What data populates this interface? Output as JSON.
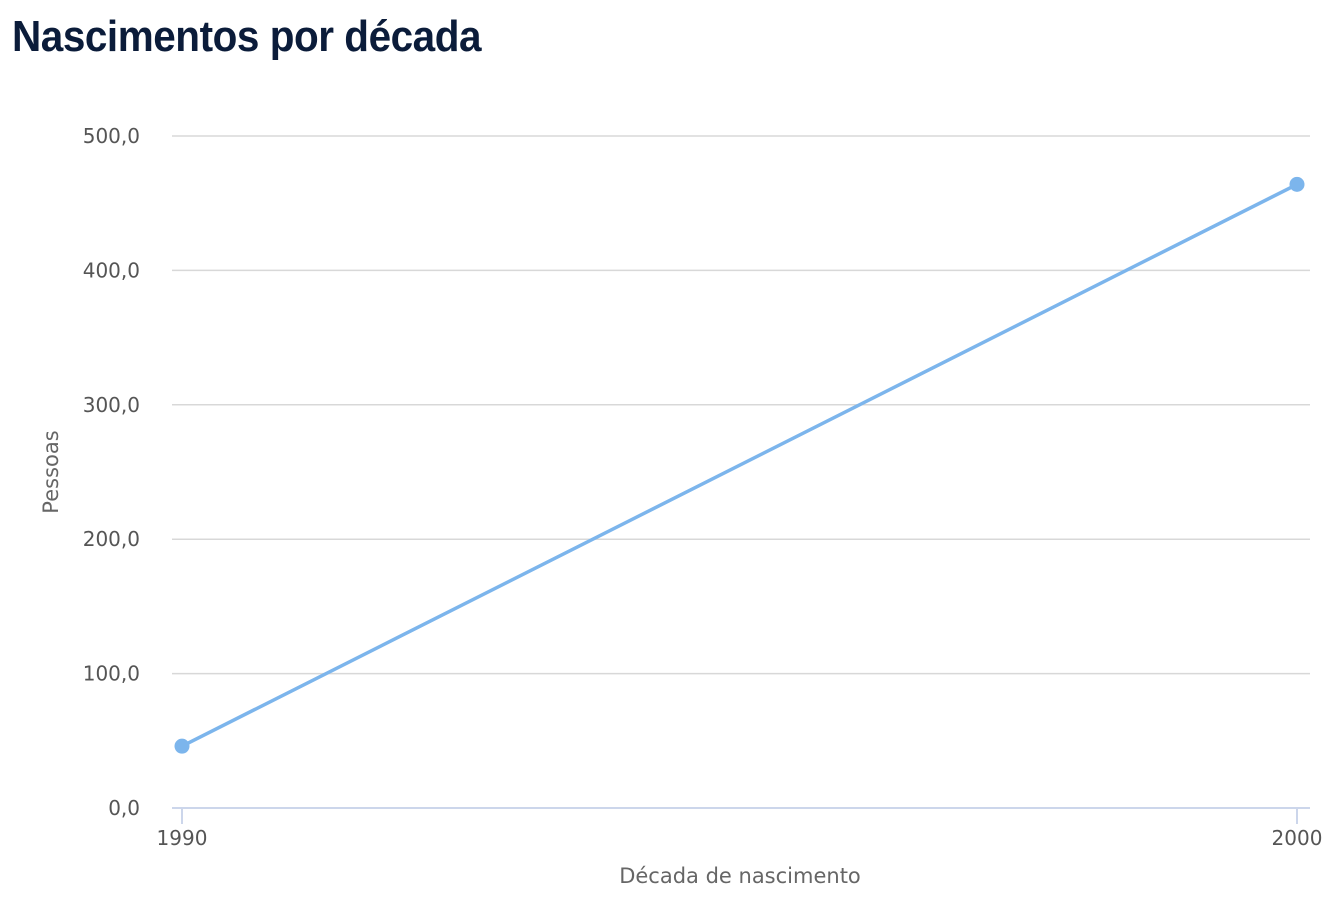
{
  "chart_data": {
    "type": "line",
    "title": "Nascimentos por década",
    "xlabel": "Década de nascimento",
    "ylabel": "Pessoas",
    "categories": [
      "1990",
      "2000"
    ],
    "series": [
      {
        "values": [
          46,
          464
        ]
      }
    ],
    "ylim": [
      0,
      500
    ],
    "yticks": [
      "0,0",
      "100,0",
      "200,0",
      "300,0",
      "400,0",
      "500,0"
    ],
    "grid": true,
    "legend": "none",
    "colors": {
      "line": "#7cb5ec",
      "grid": "#d8d8d8",
      "axis": "#ccd6eb",
      "title": "#0b1c3a"
    }
  }
}
